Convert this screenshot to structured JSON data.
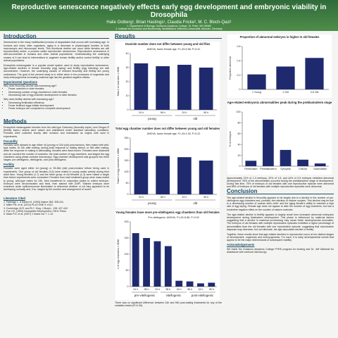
{
  "header": {
    "title": "Reproductive senescence negatively effects early egg development and embryonic viability in Drosophila",
    "authors": "Halie Ostberg¹, Brian Hastings¹, Claudia Fricke², M. C. Bloch-Qazi¹",
    "affiliations": [
      "1. Department of Biology, Gustavus Adolphus College, St. Peter, MN 56082",
      "2. Institute for Evolution and Biodiversity, Westfälische Wilhelms-Universität, Münster, Germany"
    ]
  },
  "introduction": {
    "heading": "Introduction",
    "paragraphs": [
      "Senescence is the many multifaceted process of degradation that occurs with increasing age. In humans and many other organisms, aging is a decrease in physiological function at both macroscopic and microscopic levels. This functional decline can occur while females are still reproductively active, a process called reproductive senescence. Reproductive senescence is well-documented in humans and other animal populations¹. Understanding the underlying causes of it can lead to interventions to augment human fertility and/or control fertility in other animal populations.",
      "Drosophila melanogaster is a popular model system used to study reproductive senescence. Age-related declines in female fecundity (egg laying) and fertility (egg hatching) are well documented². However, the underlying causes of reduced fecundity and fertility are poorly understood. The goal of the present study is to refine when in the processes of oogenesis and early embryogenesis increasing maternal age has the greatest negative effects."
    ],
    "questions_heading": "Experimental Questions",
    "q1": "Why does fecundity decline with increasing age?",
    "q1_items": [
      "Fewer ovarioles in older females",
      "Decreasing number of egg chambers in older females",
      "Decreasing rate of egg chamber development in older females"
    ],
    "q2": "Why does fertility decline with increasing age?",
    "q2_items": [
      "Decreasing fertilization efficiency",
      "Fewer fertilized eggs initiate development",
      "Fewer embryos are competent to complete development"
    ]
  },
  "methods": {
    "heading": "Methods",
    "paragraphs": [
      "Drosophila melanogaster females from the wild-type Dahomey (fecundity expts.) and Oregon-R (fertility expts.) strains were raised and maintained under standard laboratory conditions. Females were collected shortly after eclosion and maintained as virgins until used in experiments."
    ],
    "fecundity_heading": "Fecundity",
    "fecundity_text": "Females were allowed to age either 4d (young) or 32d (old) post-eclosion, then mated with wild-type males. At 24h after mating, during peak response to mating stimuli, or 96h after mating, while the response to mating is attenuating, females were flash-frozen. Females were dissected and we counted the number of ovarioles, the total number of egg chambers, and staged the egg chambers using phase contrast microscopy³. Egg chamber development was grouped into three stages: pre-vitellogenic, vitellogenic, and post-vitellogenic.",
    "fertility_heading": "Fertility",
    "fertility_text": "Females were aged either 4d (young) or 35-36d (old) post-eclosion before being used in experiments. One group of old females (3-5) were mated to young males weekly during their adult lives. Young females (1-7) and the other group of old females (1-3) were mated a single time before experiments were conducted. Females from each treatment group were mass mated to young, wild-type males for 24h, then transferred to oviposition plates to collect embryos. Embryos were dechorionated and fixed, then stained with DAPI. Stained embryos were examined under epifluorescence illumination to determine whether or not they appeared to be developing normally and, if so, staged by the number and arrangement of nuclei⁴.",
    "lit_heading": "Literature Cited",
    "refs": [
      "1. Partridge L. & Barton N. (1993) Nature 362: 305-311.",
      "2. Miller P.B. et al. (2014) PLoS ONE 9: e112.",
      "3. Cummings, M.R. and R.C. King. J Morph., 128: 427-442.",
      "4. Foe V.E. (1993) Drosophila Development. CSHL Press.",
      "5. Mack P.D. et al. (2007) J Insect Sci 7: 1-13."
    ]
  },
  "results": {
    "heading": "Results",
    "caption": "There was no significant difference between 24h and 96h post-mating treatments for any of the variables tested (P>0.05)."
  },
  "right_caption": "Approximately 21% of 1-3 embryos, 32% of 1-5, and 44% of 3-5 embryos exhibited abnormal development. 93% of the abnormalities occurred during the preblastoderm stage of development. During this time, 75% of embryos of old females with one reproductive episode were abnormal and 86% of embryos of old females with multiple reproductive episodes were abnormal.",
  "conclusion": {
    "heading": "Conclusion",
    "paragraphs": [
      "The age-related decline in fecundity appears to be largely due to a decline in the number of pre-vitellogenic egg chambers and, possibly, the retention of mature oocytes. This decline may be due to a decreasing number of ovarian stem cells⁵ and the aging female's ability to maintain a high rate of egg laying. Female age does not appear to alter the number of egg chambers, but has a borderline negative effect on the number of mature ovarioles.",
      "The age-related decline in fertility appears to largely result from increased abnormal embryonic development during blastoderm development. This phase is influenced by maternal factors suggesting that a decline in maternal provisioning may cause these developmental anomalies. The embryos of old females with multiple reproductive episodes exhibited a higher percentage of abnormalities than the old females with one reproductive episode, suggesting that reproductive diapause may decrease, but not eliminate, the age-associated decline in fertility.",
      "Together, these results show that age-related declines in reproduction occur at two distinct stages of development: oogenesis and embryogenesis. For each, it is early developmental events that appear to be the major determinants of subsequent viability."
    ],
    "ack_heading": "Acknowledgements",
    "ack": "We thank the Gustavus Adolphus College PYRE program for funding and Dr. Jeff Dahlseid for assistance with confocal microscopy."
  },
  "chart_data": [
    {
      "type": "bar",
      "title": "Ovariole number does not differ between young and old flies",
      "ylabel": "Total # of ovarioles ± SEM",
      "categories": [
        "24 h",
        "96 h",
        "24 h",
        "96 h"
      ],
      "groups": [
        "young",
        "old"
      ],
      "values": [
        33,
        31,
        32,
        30
      ],
      "color": "#1f2a6e",
      "annotation": "ANOVA, factor female age: F1,43=0.68, P=0.41",
      "ylim": [
        0,
        40
      ],
      "yticks": [
        0,
        10,
        20,
        30,
        40
      ]
    },
    {
      "type": "bar",
      "title": "Total egg chamber number does not differ between young and old females",
      "ylabel": "Total # of egg chambers ± SEM",
      "categories": [
        "24 h",
        "96 h",
        "24 h",
        "96 h"
      ],
      "groups": [
        "young",
        "old"
      ],
      "values": [
        185,
        170,
        165,
        150
      ],
      "color": "#1f2a6e",
      "annotation": "ANOVA, factor female age: F1,43=1.52, P=0.22",
      "ylim": [
        0,
        250
      ],
      "yticks": [
        0,
        50,
        100,
        150,
        200,
        250
      ]
    },
    {
      "type": "bar",
      "title": "Young females have more pre-vitellogenic egg chambers than old females",
      "ylabel": "# of egg chambers ± SEM",
      "categories": [
        "24 h",
        "96 h",
        "24 h",
        "96 h",
        "24 h",
        "96 h",
        "24 h",
        "96 h"
      ],
      "groups": [
        "pre-vitellogenic",
        "vitellogenic",
        "post-vitellogenic"
      ],
      "values": [
        165,
        150,
        140,
        125,
        18,
        16,
        10,
        12
      ],
      "color": "#1f2a6e",
      "annotation": "Pre-vitellogenic: ANOVA, F1,43=5.86, P=0.02",
      "ylim": [
        0,
        200
      ],
      "yticks": [
        0,
        50,
        100,
        150,
        200
      ]
    },
    {
      "type": "bar",
      "title": "Proportion of abnormal embryos is higher in old females",
      "ylabel": "Proportion abnormal",
      "categories": [
        "1 Young",
        "1 Old",
        "3-5 Old"
      ],
      "values": [
        0.21,
        0.32,
        0.44
      ],
      "color": "#1f2a6e",
      "ylim": [
        0,
        0.6
      ],
      "yticks": [
        0,
        0.2,
        0.4,
        0.6
      ]
    },
    {
      "type": "bar",
      "title": "Age-related embryonic abnormalities peak during the preblastoderm stage",
      "ylabel": "% of embryos",
      "categories": [
        "Fertilization",
        "Preblastoderm",
        "Syncytial",
        "Cellular",
        "Gastrulation"
      ],
      "values": [
        10,
        86,
        30,
        12,
        5
      ],
      "color": "#1f2a6e",
      "ylim": [
        0,
        100
      ],
      "yticks": [
        0,
        20,
        40,
        60,
        80,
        100
      ]
    }
  ]
}
